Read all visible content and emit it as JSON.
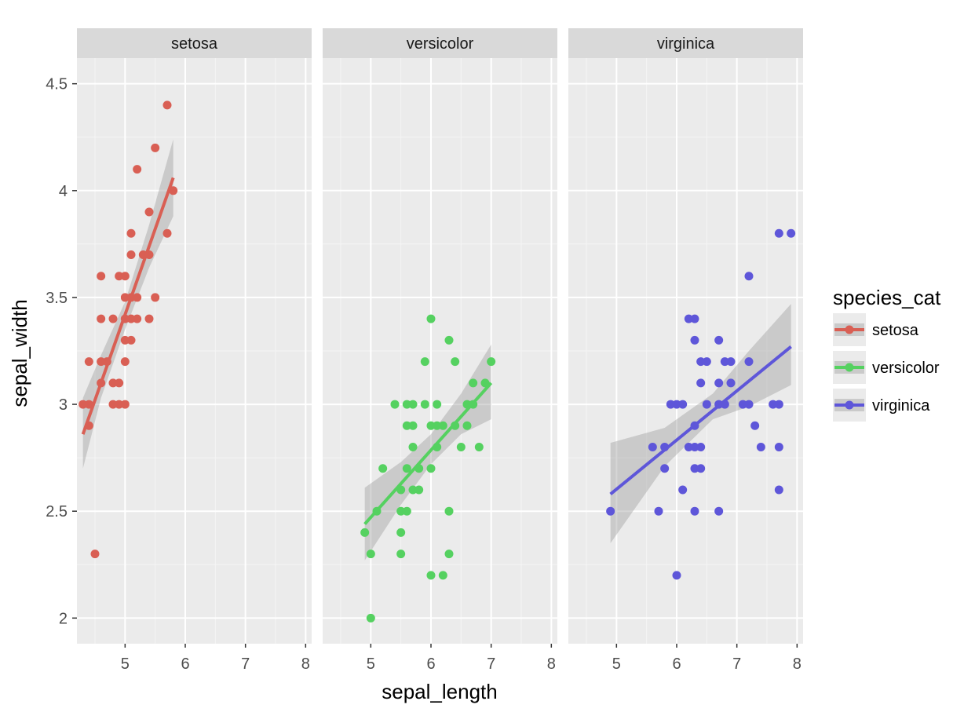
{
  "chart_data": {
    "type": "scatter",
    "facet_by": "species",
    "xlabel": "sepal_length",
    "ylabel": "sepal_width",
    "xlim": [
      4.2,
      8.1
    ],
    "ylim": [
      1.88,
      4.62
    ],
    "x_ticks": [
      5,
      6,
      7,
      8
    ],
    "y_ticks": [
      2,
      2.5,
      3,
      3.5,
      4,
      4.5
    ],
    "y_tick_labels": [
      "2",
      "2.5",
      "3",
      "3.5",
      "4",
      "4.5"
    ],
    "grid": true,
    "legend": {
      "title": "species_cat",
      "position": "right",
      "entries": [
        {
          "label": "setosa",
          "color": "#d95f54"
        },
        {
          "label": "versicolor",
          "color": "#55d160"
        },
        {
          "label": "virginica",
          "color": "#5e56d9"
        }
      ]
    },
    "panels": [
      {
        "label": "setosa",
        "color": "#d95f54",
        "points": [
          [
            4.3,
            3.0
          ],
          [
            4.4,
            3.0
          ],
          [
            4.4,
            3.2
          ],
          [
            4.4,
            2.9
          ],
          [
            4.5,
            2.3
          ],
          [
            4.6,
            3.4
          ],
          [
            4.6,
            3.6
          ],
          [
            4.6,
            3.2
          ],
          [
            4.6,
            3.1
          ],
          [
            4.7,
            3.2
          ],
          [
            4.8,
            3.4
          ],
          [
            4.8,
            3.1
          ],
          [
            4.8,
            3.0
          ],
          [
            4.9,
            3.6
          ],
          [
            4.9,
            3.1
          ],
          [
            4.9,
            3.0
          ],
          [
            5.0,
            3.6
          ],
          [
            5.0,
            3.5
          ],
          [
            5.0,
            3.4
          ],
          [
            5.0,
            3.3
          ],
          [
            5.0,
            3.2
          ],
          [
            5.0,
            3.0
          ],
          [
            5.1,
            3.8
          ],
          [
            5.1,
            3.7
          ],
          [
            5.1,
            3.5
          ],
          [
            5.1,
            3.4
          ],
          [
            5.1,
            3.3
          ],
          [
            5.2,
            4.1
          ],
          [
            5.2,
            3.5
          ],
          [
            5.2,
            3.4
          ],
          [
            5.3,
            3.7
          ],
          [
            5.4,
            3.9
          ],
          [
            5.4,
            3.7
          ],
          [
            5.4,
            3.4
          ],
          [
            5.5,
            4.2
          ],
          [
            5.5,
            3.5
          ],
          [
            5.7,
            4.4
          ],
          [
            5.7,
            3.8
          ],
          [
            5.8,
            4.0
          ]
        ],
        "fit": {
          "x": [
            4.3,
            5.8
          ],
          "y": [
            2.86,
            4.06
          ]
        },
        "band": {
          "x": [
            4.3,
            4.6,
            5.0,
            5.4,
            5.8
          ],
          "lower": [
            2.7,
            3.03,
            3.35,
            3.64,
            3.88
          ],
          "upper": [
            3.03,
            3.23,
            3.48,
            3.84,
            4.24
          ]
        }
      },
      {
        "label": "versicolor",
        "color": "#55d160",
        "points": [
          [
            4.9,
            2.4
          ],
          [
            5.0,
            2.3
          ],
          [
            5.0,
            2.0
          ],
          [
            5.1,
            2.5
          ],
          [
            5.2,
            2.7
          ],
          [
            5.4,
            3.0
          ],
          [
            5.5,
            2.6
          ],
          [
            5.5,
            2.5
          ],
          [
            5.5,
            2.4
          ],
          [
            5.5,
            2.3
          ],
          [
            5.6,
            3.0
          ],
          [
            5.6,
            2.9
          ],
          [
            5.6,
            2.7
          ],
          [
            5.6,
            2.5
          ],
          [
            5.7,
            3.0
          ],
          [
            5.7,
            2.9
          ],
          [
            5.7,
            2.8
          ],
          [
            5.7,
            2.6
          ],
          [
            5.8,
            2.7
          ],
          [
            5.8,
            2.6
          ],
          [
            5.9,
            3.2
          ],
          [
            5.9,
            3.0
          ],
          [
            6.0,
            3.4
          ],
          [
            6.0,
            2.9
          ],
          [
            6.0,
            2.7
          ],
          [
            6.0,
            2.2
          ],
          [
            6.1,
            3.0
          ],
          [
            6.1,
            2.9
          ],
          [
            6.1,
            2.8
          ],
          [
            6.2,
            2.9
          ],
          [
            6.2,
            2.2
          ],
          [
            6.3,
            3.3
          ],
          [
            6.3,
            2.5
          ],
          [
            6.3,
            2.3
          ],
          [
            6.4,
            3.2
          ],
          [
            6.4,
            2.9
          ],
          [
            6.5,
            2.8
          ],
          [
            6.6,
            3.0
          ],
          [
            6.6,
            2.9
          ],
          [
            6.7,
            3.1
          ],
          [
            6.7,
            3.0
          ],
          [
            6.8,
            2.8
          ],
          [
            6.9,
            3.1
          ],
          [
            7.0,
            3.2
          ]
        ],
        "fit": {
          "x": [
            4.9,
            7.0
          ],
          "y": [
            2.44,
            3.1
          ]
        },
        "band": {
          "x": [
            4.9,
            5.5,
            6.0,
            6.5,
            7.0
          ],
          "lower": [
            2.27,
            2.53,
            2.72,
            2.86,
            2.93
          ],
          "upper": [
            2.61,
            2.73,
            2.86,
            3.05,
            3.28
          ]
        }
      },
      {
        "label": "virginica",
        "color": "#5e56d9",
        "points": [
          [
            4.9,
            2.5
          ],
          [
            5.6,
            2.8
          ],
          [
            5.7,
            2.5
          ],
          [
            5.8,
            2.8
          ],
          [
            5.8,
            2.7
          ],
          [
            5.9,
            3.0
          ],
          [
            6.0,
            3.0
          ],
          [
            6.0,
            2.2
          ],
          [
            6.1,
            3.0
          ],
          [
            6.1,
            2.6
          ],
          [
            6.2,
            3.4
          ],
          [
            6.2,
            2.8
          ],
          [
            6.3,
            3.4
          ],
          [
            6.3,
            3.3
          ],
          [
            6.3,
            2.9
          ],
          [
            6.3,
            2.8
          ],
          [
            6.3,
            2.7
          ],
          [
            6.3,
            2.5
          ],
          [
            6.4,
            3.2
          ],
          [
            6.4,
            3.1
          ],
          [
            6.4,
            2.8
          ],
          [
            6.4,
            2.7
          ],
          [
            6.5,
            3.2
          ],
          [
            6.5,
            3.0
          ],
          [
            6.7,
            3.3
          ],
          [
            6.7,
            3.1
          ],
          [
            6.7,
            3.0
          ],
          [
            6.7,
            2.5
          ],
          [
            6.8,
            3.2
          ],
          [
            6.8,
            3.0
          ],
          [
            6.9,
            3.2
          ],
          [
            6.9,
            3.1
          ],
          [
            7.1,
            3.0
          ],
          [
            7.2,
            3.6
          ],
          [
            7.2,
            3.2
          ],
          [
            7.2,
            3.0
          ],
          [
            7.3,
            2.9
          ],
          [
            7.4,
            2.8
          ],
          [
            7.6,
            3.0
          ],
          [
            7.7,
            3.8
          ],
          [
            7.7,
            3.0
          ],
          [
            7.7,
            2.8
          ],
          [
            7.7,
            2.6
          ],
          [
            7.9,
            3.8
          ]
        ],
        "fit": {
          "x": [
            4.9,
            7.9
          ],
          "y": [
            2.58,
            3.27
          ]
        },
        "band": {
          "x": [
            4.9,
            5.8,
            6.6,
            7.2,
            7.9
          ],
          "lower": [
            2.35,
            2.71,
            2.93,
            2.99,
            3.09
          ],
          "upper": [
            2.82,
            2.89,
            3.05,
            3.25,
            3.47
          ]
        }
      }
    ]
  }
}
